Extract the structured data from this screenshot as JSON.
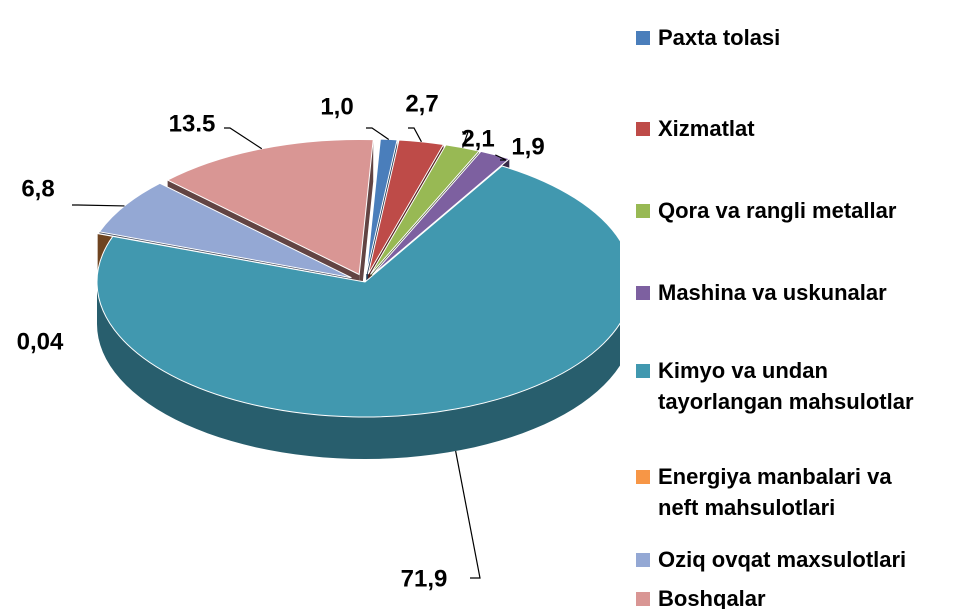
{
  "chart_data": {
    "type": "pie",
    "categories": [
      "Paxta tolasi",
      "Xizmatlat",
      "Qora va rangli metallar",
      "Mashina va uskunalar",
      "Kimyo va undan\ntayorlangan mahsulotlar",
      "Energiya manbalari va\nneft mahsulotlari",
      "Oziq ovqat maxsulotlari",
      "Boshqalar"
    ],
    "values": [
      1.0,
      2.7,
      2.1,
      1.9,
      71.9,
      0.04,
      6.8,
      13.5
    ],
    "value_labels": [
      "1,0",
      "2,7",
      "2,1",
      "1,9",
      "71,9",
      "0,04",
      "6,8",
      "13.5"
    ],
    "colors": [
      "#4a7ebb",
      "#be4b48",
      "#98b954",
      "#7d60a0",
      "#4198af",
      "#f79646",
      "#94a8d4",
      "#d99694"
    ],
    "legend": "right"
  }
}
